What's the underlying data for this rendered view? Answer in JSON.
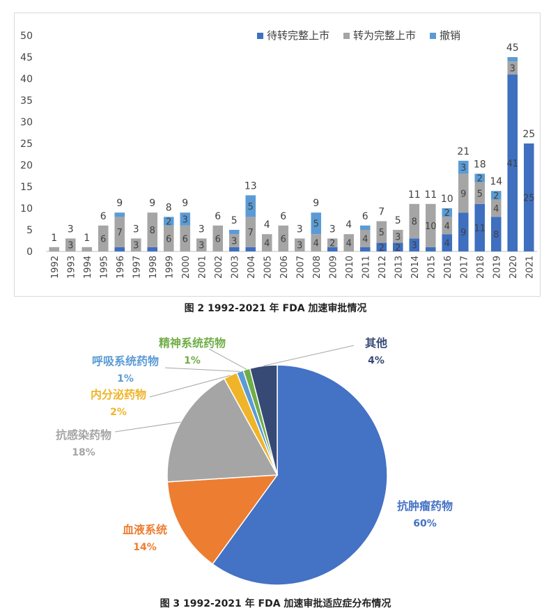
{
  "chart_data": [
    {
      "type": "bar",
      "stacked": true,
      "categories": [
        "1992",
        "1993",
        "1994",
        "1995",
        "1996",
        "1997",
        "1998",
        "1999",
        "2000",
        "2001",
        "2002",
        "2003",
        "2004",
        "2005",
        "2006",
        "2007",
        "2008",
        "2009",
        "2010",
        "2011",
        "2012",
        "2013",
        "2014",
        "2015",
        "2016",
        "2017",
        "2018",
        "2019",
        "2020",
        "2021"
      ],
      "series": [
        {
          "name": "待转完整上市",
          "color": "#3f6fbf",
          "values": [
            0,
            0,
            0,
            0,
            1,
            0,
            1,
            0,
            0,
            0,
            0,
            1,
            1,
            0,
            0,
            0,
            0,
            1,
            0,
            1,
            2,
            2,
            3,
            1,
            4,
            9,
            11,
            8,
            41,
            25
          ]
        },
        {
          "name": "转为完整上市",
          "color": "#a5a5a5",
          "values": [
            1,
            3,
            1,
            6,
            7,
            3,
            8,
            6,
            6,
            3,
            6,
            3,
            7,
            4,
            6,
            3,
            4,
            2,
            4,
            4,
            5,
            3,
            8,
            10,
            4,
            9,
            5,
            4,
            3,
            0
          ]
        },
        {
          "name": "撤销",
          "color": "#5b9bd5",
          "values": [
            0,
            0,
            0,
            0,
            1,
            0,
            0,
            2,
            3,
            0,
            0,
            1,
            5,
            0,
            0,
            0,
            5,
            0,
            0,
            1,
            0,
            0,
            0,
            0,
            2,
            3,
            2,
            2,
            1,
            0
          ]
        }
      ],
      "totals": [
        1,
        3,
        1,
        6,
        9,
        3,
        9,
        8,
        9,
        3,
        6,
        5,
        13,
        4,
        6,
        3,
        9,
        3,
        4,
        6,
        7,
        5,
        11,
        11,
        10,
        21,
        18,
        14,
        45,
        25
      ],
      "yticks": [
        0,
        5,
        10,
        15,
        20,
        25,
        30,
        35,
        40,
        45,
        50
      ],
      "ylim": [
        0,
        50
      ],
      "legend_position": "top-right",
      "title": ""
    },
    {
      "type": "pie",
      "slices": [
        {
          "label": "抗肿瘤药物",
          "value": 60,
          "pct": "60%",
          "color": "#4472c4"
        },
        {
          "label": "血液系统",
          "value": 14,
          "pct": "14%",
          "color": "#ed7d31"
        },
        {
          "label": "抗感染药物",
          "value": 18,
          "pct": "18%",
          "color": "#a5a5a5"
        },
        {
          "label": "内分泌药物",
          "value": 2,
          "pct": "2%",
          "color": "#f0b429"
        },
        {
          "label": "呼吸系统药物",
          "value": 1,
          "pct": "1%",
          "color": "#5b9bd5"
        },
        {
          "label": "精神系统药物",
          "value": 1,
          "pct": "1%",
          "color": "#70ad47"
        },
        {
          "label": "其他",
          "value": 4,
          "pct": "4%",
          "color": "#374a75"
        }
      ]
    }
  ],
  "captions": {
    "fig2": "图 2   1992-2021 年 FDA 加速审批情况",
    "fig3": "图 3   1992-2021 年 FDA 加速审批适应症分布情况"
  }
}
